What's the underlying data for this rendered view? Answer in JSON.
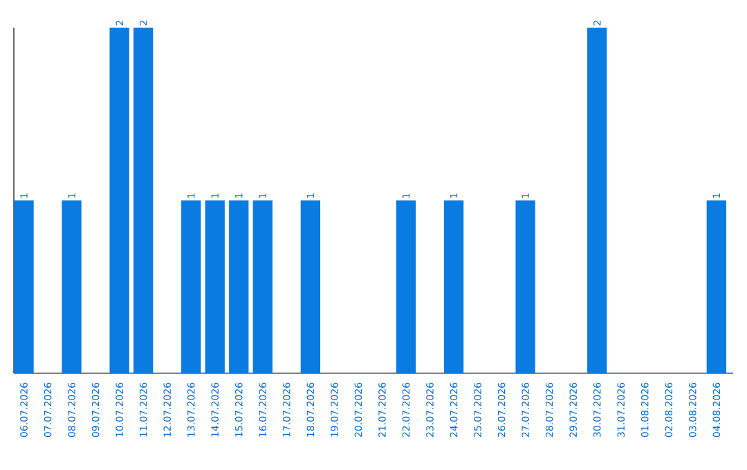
{
  "chart_data": {
    "type": "bar",
    "categories": [
      "06.07.2026",
      "07.07.2026",
      "08.07.2026",
      "09.07.2026",
      "10.07.2026",
      "11.07.2026",
      "12.07.2026",
      "13.07.2026",
      "14.07.2026",
      "15.07.2026",
      "16.07.2026",
      "17.07.2026",
      "18.07.2026",
      "19.07.2026",
      "20.07.2026",
      "21.07.2026",
      "22.07.2026",
      "23.07.2026",
      "24.07.2026",
      "25.07.2026",
      "26.07.2026",
      "27.07.2026",
      "28.07.2026",
      "29.07.2026",
      "30.07.2026",
      "31.07.2026",
      "01.08.2026",
      "02.08.2026",
      "03.08.2026",
      "04.08.2026"
    ],
    "values": [
      1,
      0,
      1,
      0,
      2,
      2,
      0,
      1,
      1,
      1,
      1,
      0,
      1,
      0,
      0,
      0,
      1,
      0,
      1,
      0,
      0,
      1,
      0,
      0,
      2,
      0,
      0,
      0,
      0,
      1
    ],
    "value_labels": [
      "1",
      null,
      "1",
      null,
      "2",
      "2",
      null,
      "1",
      "1",
      "1",
      "1",
      null,
      "1",
      null,
      null,
      null,
      "1",
      null,
      "1",
      null,
      null,
      "1",
      null,
      null,
      "2",
      null,
      null,
      null,
      null,
      "1"
    ],
    "color": "#0a7be0"
  }
}
